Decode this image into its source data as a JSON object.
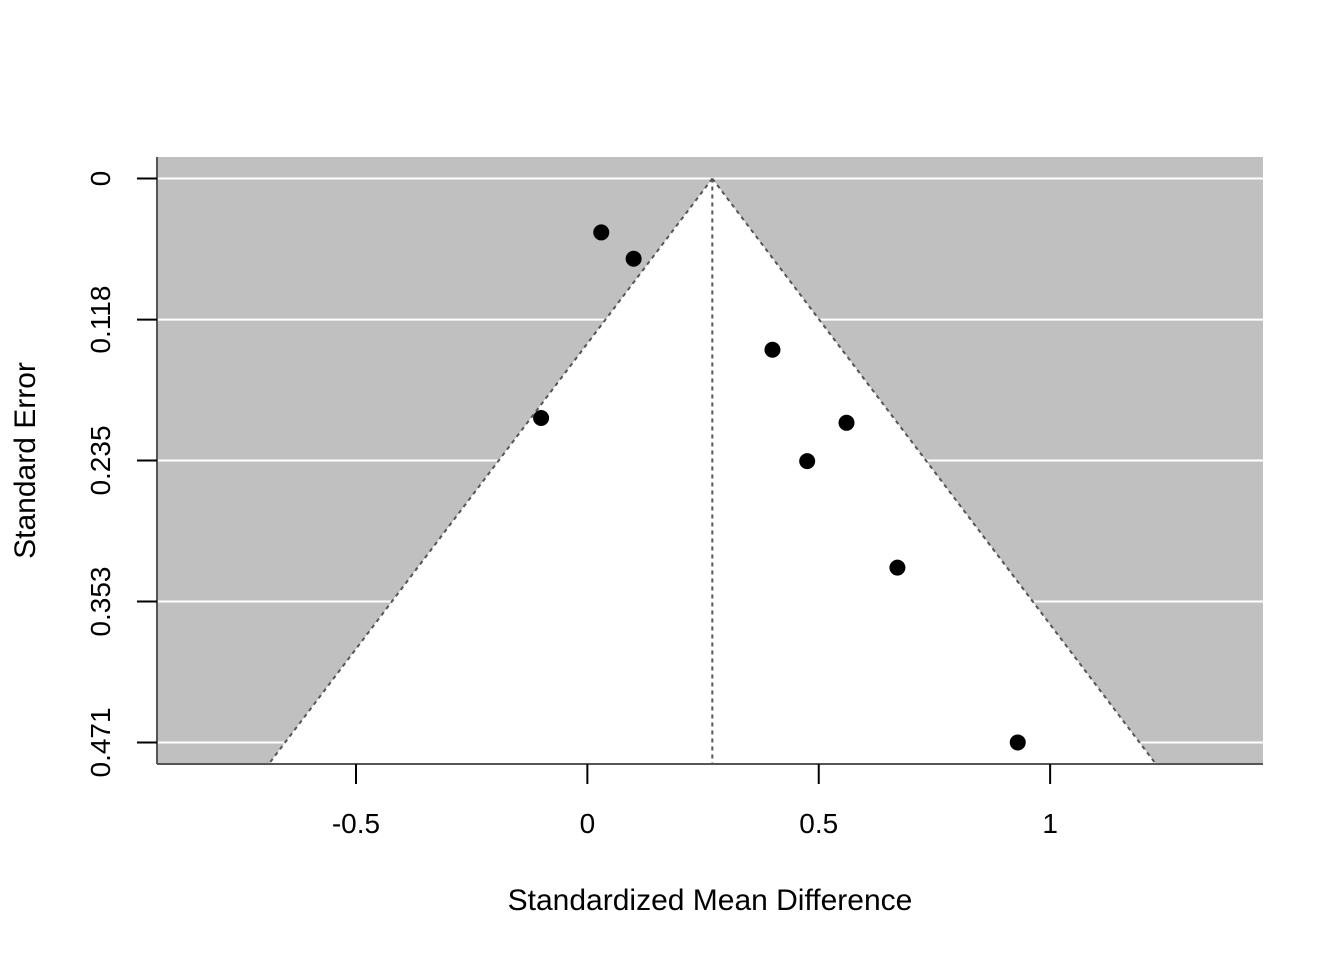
{
  "chart_data": {
    "type": "scatter",
    "subtype": "funnel-plot",
    "title": "",
    "xlabel": "Standardized Mean Difference",
    "ylabel": "Standard Error",
    "xlim": [
      -0.93,
      1.46
    ],
    "ylim": [
      0.489,
      -0.018
    ],
    "y_axis_reversed": true,
    "x_ticks": [
      -0.5,
      0,
      0.5,
      1
    ],
    "x_tick_labels": [
      "-0.5",
      "0",
      "0.5",
      "1"
    ],
    "y_ticks": [
      0,
      0.1178,
      0.2355,
      0.3533,
      0.471
    ],
    "y_tick_labels": [
      "0",
      "0.118",
      "0.235",
      "0.353",
      "0.471"
    ],
    "pooled_estimate": 0.27,
    "funnel_multiplier": 1.96,
    "grid": "horizontal white lines at y ticks",
    "colors": {
      "background_outside_funnel": "#c0c0c0",
      "funnel_interior": "#ffffff",
      "points": "#000000",
      "reference_lines": "#555555",
      "grid": "#ffffff"
    },
    "points": [
      {
        "x": 0.03,
        "y": 0.045
      },
      {
        "x": 0.1,
        "y": 0.067
      },
      {
        "x": 0.4,
        "y": 0.143
      },
      {
        "x": -0.1,
        "y": 0.2
      },
      {
        "x": 0.56,
        "y": 0.204
      },
      {
        "x": 0.475,
        "y": 0.236
      },
      {
        "x": 0.67,
        "y": 0.325
      },
      {
        "x": 0.93,
        "y": 0.471
      }
    ]
  }
}
